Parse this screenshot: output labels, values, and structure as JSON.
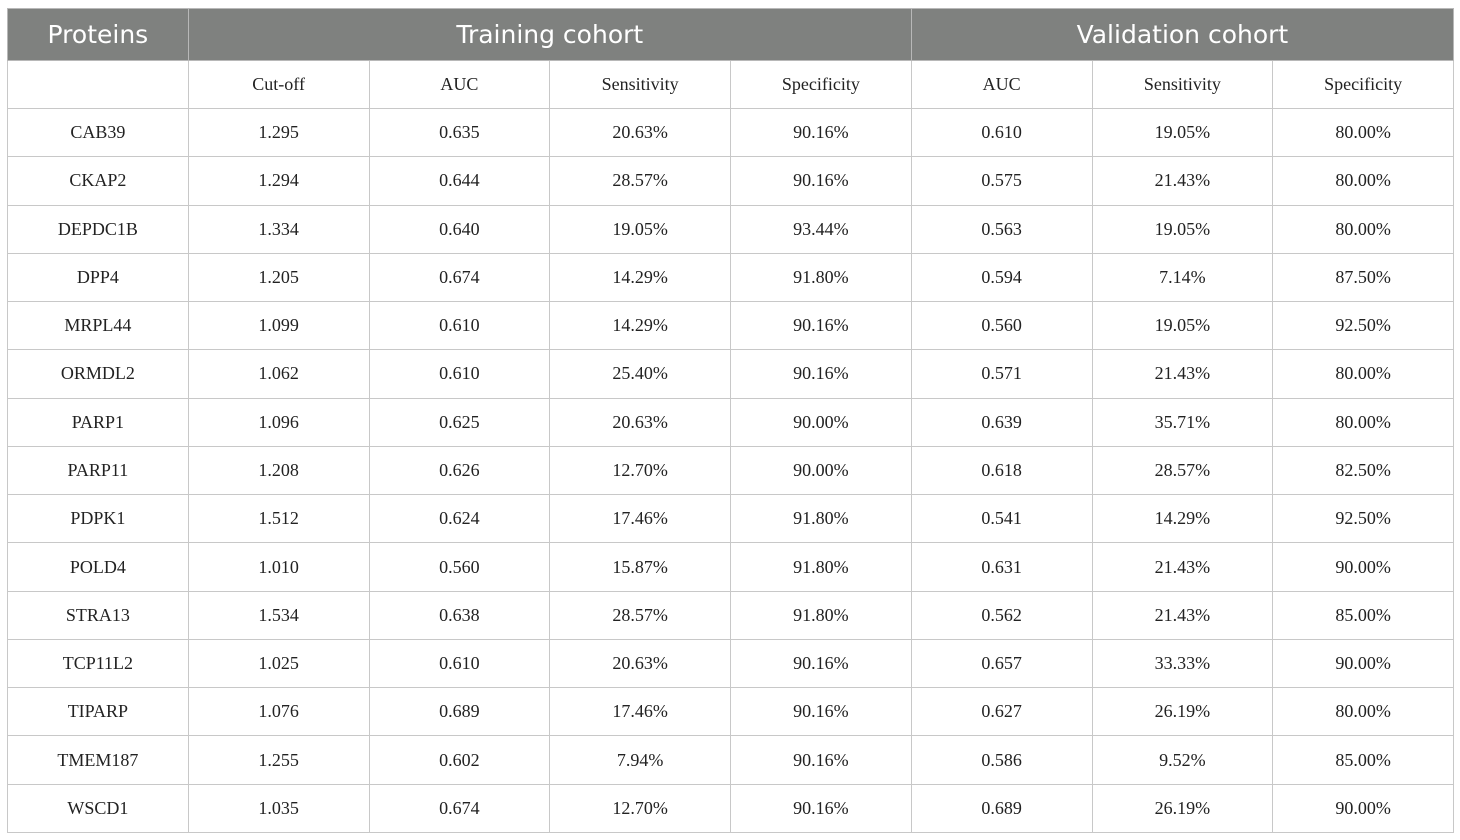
{
  "header": {
    "proteins_label": "Proteins",
    "training_label": "Training cohort",
    "validation_label": "Validation cohort"
  },
  "subheader": [
    "",
    "Cut-off",
    "AUC",
    "Sensitivity",
    "Specificity",
    "AUC",
    "Sensitivity",
    "Specificity"
  ],
  "rows": [
    [
      "CAB39",
      "1.295",
      "0.635",
      "20.63%",
      "90.16%",
      "0.610",
      "19.05%",
      "80.00%"
    ],
    [
      "CKAP2",
      "1.294",
      "0.644",
      "28.57%",
      "90.16%",
      "0.575",
      "21.43%",
      "80.00%"
    ],
    [
      "DEPDC1B",
      "1.334",
      "0.640",
      "19.05%",
      "93.44%",
      "0.563",
      "19.05%",
      "80.00%"
    ],
    [
      "DPP4",
      "1.205",
      "0.674",
      "14.29%",
      "91.80%",
      "0.594",
      "7.14%",
      "87.50%"
    ],
    [
      "MRPL44",
      "1.099",
      "0.610",
      "14.29%",
      "90.16%",
      "0.560",
      "19.05%",
      "92.50%"
    ],
    [
      "ORMDL2",
      "1.062",
      "0.610",
      "25.40%",
      "90.16%",
      "0.571",
      "21.43%",
      "80.00%"
    ],
    [
      "PARP1",
      "1.096",
      "0.625",
      "20.63%",
      "90.00%",
      "0.639",
      "35.71%",
      "80.00%"
    ],
    [
      "PARP11",
      "1.208",
      "0.626",
      "12.70%",
      "90.00%",
      "0.618",
      "28.57%",
      "82.50%"
    ],
    [
      "PDPK1",
      "1.512",
      "0.624",
      "17.46%",
      "91.80%",
      "0.541",
      "14.29%",
      "92.50%"
    ],
    [
      "POLD4",
      "1.010",
      "0.560",
      "15.87%",
      "91.80%",
      "0.631",
      "21.43%",
      "90.00%"
    ],
    [
      "STRA13",
      "1.534",
      "0.638",
      "28.57%",
      "91.80%",
      "0.562",
      "21.43%",
      "85.00%"
    ],
    [
      "TCP11L2",
      "1.025",
      "0.610",
      "20.63%",
      "90.16%",
      "0.657",
      "33.33%",
      "90.00%"
    ],
    [
      "TIPARP",
      "1.076",
      "0.689",
      "17.46%",
      "90.16%",
      "0.627",
      "26.19%",
      "80.00%"
    ],
    [
      "TMEM187",
      "1.255",
      "0.602",
      "7.94%",
      "90.16%",
      "0.586",
      "9.52%",
      "85.00%"
    ],
    [
      "WSCD1",
      "1.035",
      "0.674",
      "12.70%",
      "90.16%",
      "0.689",
      "26.19%",
      "90.00%"
    ]
  ],
  "colors": {
    "header_bg": "#7f817f",
    "header_text": "#ffffff",
    "grid": "#c8c8c8"
  }
}
